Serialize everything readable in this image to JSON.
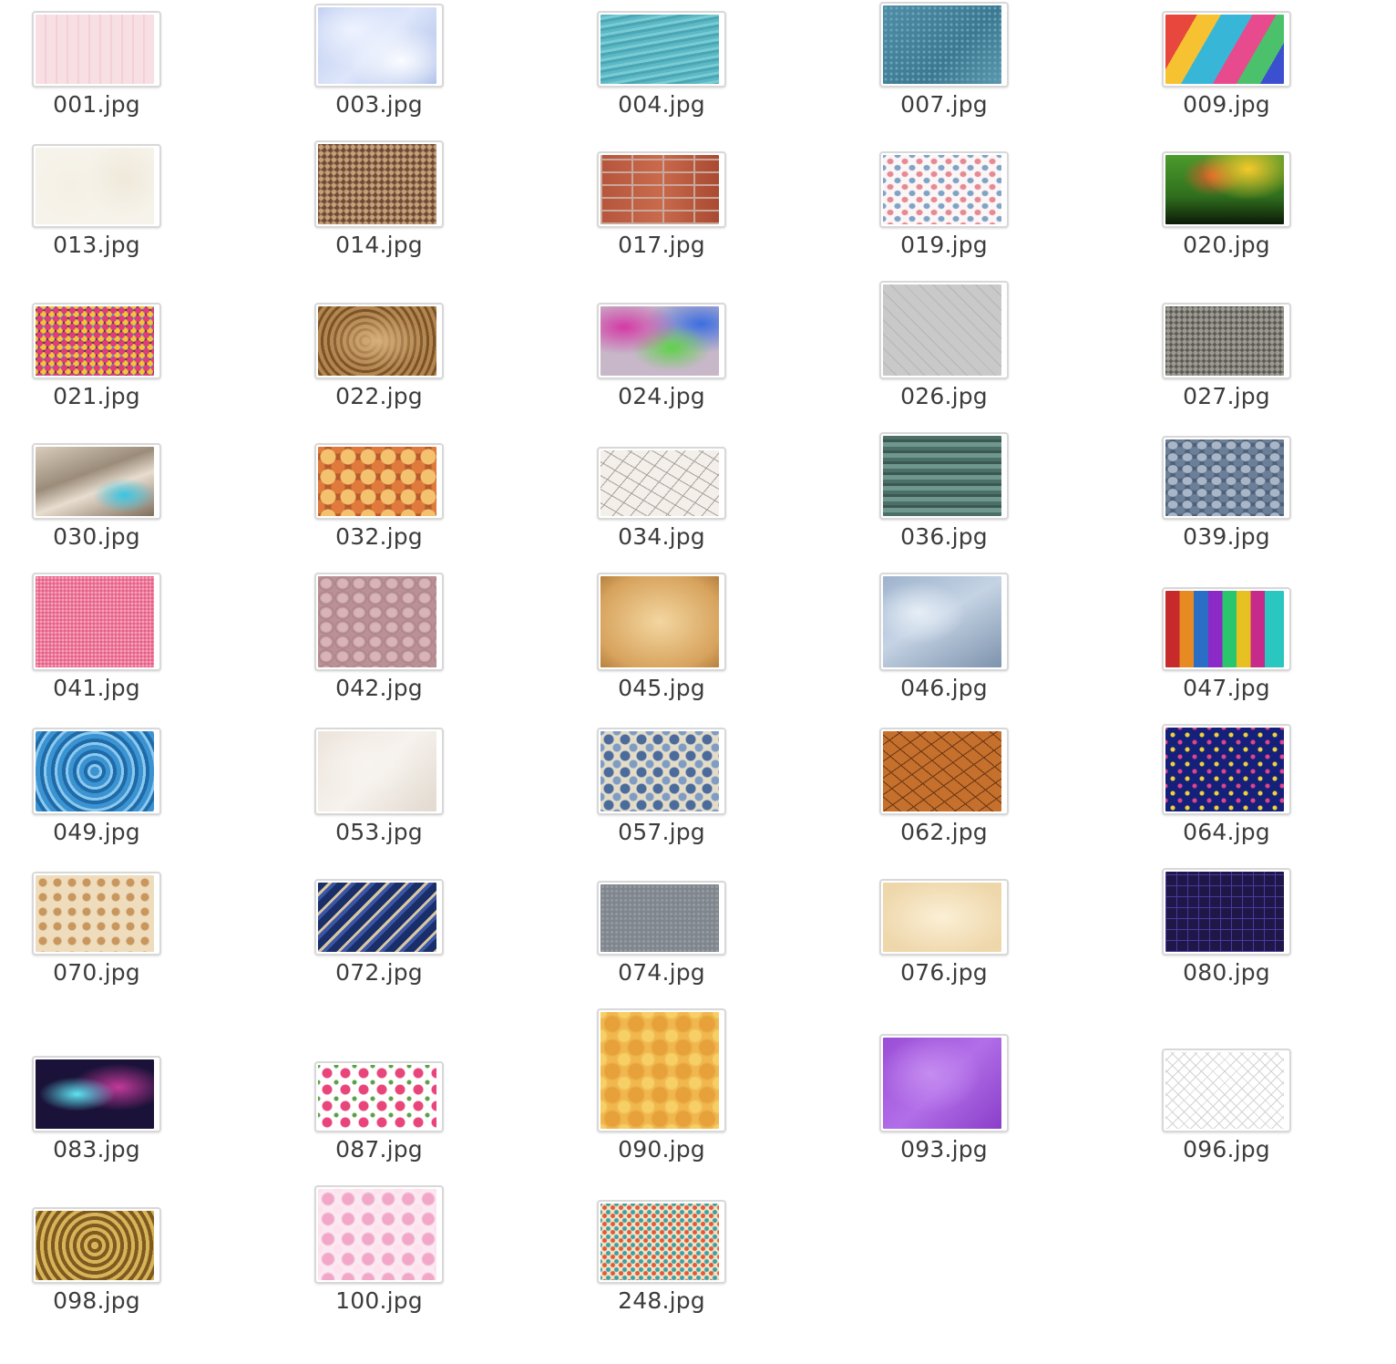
{
  "files": [
    {
      "name": "001.jpg",
      "thumb": "light-pink-floral"
    },
    {
      "name": "003.jpg",
      "thumb": "pale-blue-crystal"
    },
    {
      "name": "004.jpg",
      "thumb": "teal-water-streaks"
    },
    {
      "name": "007.jpg",
      "thumb": "blue-leather-texture"
    },
    {
      "name": "009.jpg",
      "thumb": "rainbow-abstract-paint"
    },
    {
      "name": "013.jpg",
      "thumb": "cream-swirl-pattern"
    },
    {
      "name": "014.jpg",
      "thumb": "brown-gravel"
    },
    {
      "name": "017.jpg",
      "thumb": "red-brick-wall"
    },
    {
      "name": "019.jpg",
      "thumb": "pastel-leaf-pattern"
    },
    {
      "name": "020.jpg",
      "thumb": "green-yellow-abstract"
    },
    {
      "name": "021.jpg",
      "thumb": "colorful-pebbles"
    },
    {
      "name": "022.jpg",
      "thumb": "brown-ornate-damask"
    },
    {
      "name": "024.jpg",
      "thumb": "multicolor-watercolor"
    },
    {
      "name": "026.jpg",
      "thumb": "grey-herringbone-pavers"
    },
    {
      "name": "027.jpg",
      "thumb": "grey-gravel"
    },
    {
      "name": "030.jpg",
      "thumb": "marble-blue-accent"
    },
    {
      "name": "032.jpg",
      "thumb": "orange-agate-stones"
    },
    {
      "name": "034.jpg",
      "thumb": "cracked-white-paint"
    },
    {
      "name": "036.jpg",
      "thumb": "green-weathered-wood"
    },
    {
      "name": "039.jpg",
      "thumb": "blue-grey-pebbles"
    },
    {
      "name": "041.jpg",
      "thumb": "pink-glitter"
    },
    {
      "name": "042.jpg",
      "thumb": "mauve-hammered-metal"
    },
    {
      "name": "045.jpg",
      "thumb": "tan-parchment"
    },
    {
      "name": "046.jpg",
      "thumb": "light-blue-marble"
    },
    {
      "name": "047.jpg",
      "thumb": "rainbow-wood-planks"
    },
    {
      "name": "049.jpg",
      "thumb": "blue-water-ripples"
    },
    {
      "name": "053.jpg",
      "thumb": "white-sand"
    },
    {
      "name": "057.jpg",
      "thumb": "blue-vintage-floral"
    },
    {
      "name": "062.jpg",
      "thumb": "cracked-orange-clay"
    },
    {
      "name": "064.jpg",
      "thumb": "navy-stars-pattern"
    },
    {
      "name": "070.jpg",
      "thumb": "tan-floral-pattern"
    },
    {
      "name": "072.jpg",
      "thumb": "navy-gold-stripes"
    },
    {
      "name": "074.jpg",
      "thumb": "grey-concrete"
    },
    {
      "name": "076.jpg",
      "thumb": "cream-aged-paper"
    },
    {
      "name": "080.jpg",
      "thumb": "dark-purple-grid"
    },
    {
      "name": "083.jpg",
      "thumb": "cyan-magenta-nebula"
    },
    {
      "name": "087.jpg",
      "thumb": "pink-roses-pattern"
    },
    {
      "name": "090.jpg",
      "thumb": "golden-floral-grunge"
    },
    {
      "name": "093.jpg",
      "thumb": "purple-marble"
    },
    {
      "name": "096.jpg",
      "thumb": "grey-chain-link"
    },
    {
      "name": "098.jpg",
      "thumb": "gold-embossed-ornament"
    },
    {
      "name": "100.jpg",
      "thumb": "pink-cherry-blossom"
    },
    {
      "name": "248.jpg",
      "thumb": "colorful-confetti-floral"
    }
  ]
}
